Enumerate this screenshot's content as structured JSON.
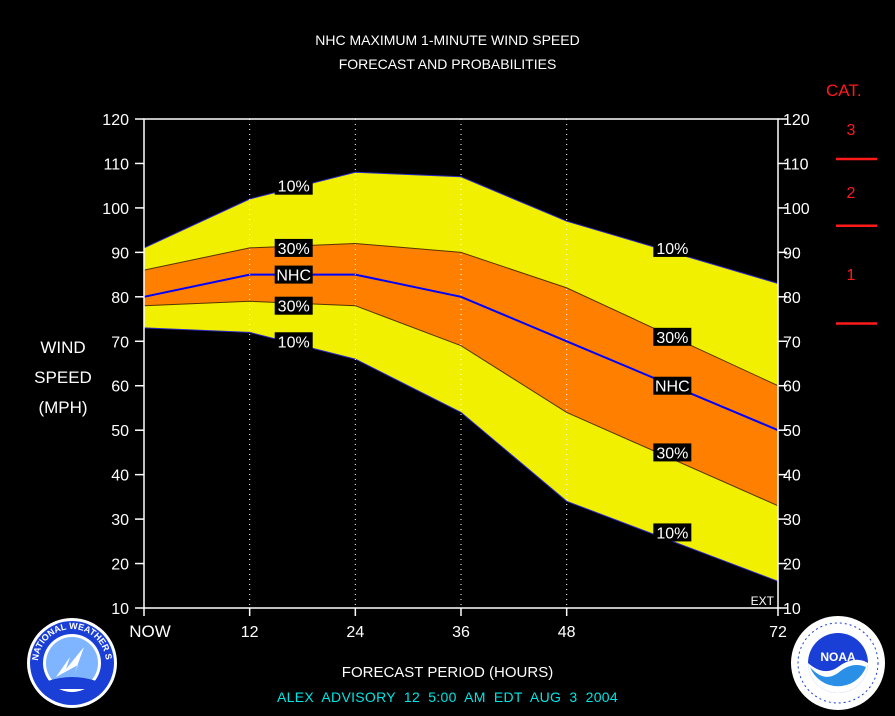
{
  "title": {
    "line1": "NHC MAXIMUM 1-MINUTE WIND SPEED",
    "line2": "FORECAST AND PROBABILITIES"
  },
  "y_axis_label": [
    "WIND",
    "SPEED",
    "(MPH)"
  ],
  "x_axis_label": "FORECAST PERIOD (HOURS)",
  "advisory": "ALEX   ADVISORY  12 5:00  AM  EDT  AUG  3  2004",
  "ext_label": "EXT",
  "category_scale": {
    "title": "CAT.",
    "categories": [
      {
        "label": "3",
        "min_mph": 111
      },
      {
        "label": "2",
        "min_mph": 96
      },
      {
        "label": "1",
        "min_mph": 74
      }
    ]
  },
  "logos": {
    "left": "noaa-national-weather-service-seal",
    "right": "noaa-department-of-commerce-seal",
    "left_text": "NATIONAL WEATHER SERVICE",
    "right_text": "NOAA"
  },
  "chart_data": {
    "type": "area",
    "xlabel": "FORECAST PERIOD (HOURS)",
    "ylabel": "WIND SPEED (MPH)",
    "x_ticks": [
      {
        "value": 0,
        "label": "NOW"
      },
      {
        "value": 12,
        "label": "12"
      },
      {
        "value": 24,
        "label": "24"
      },
      {
        "value": 36,
        "label": "36"
      },
      {
        "value": 48,
        "label": "48"
      },
      {
        "value": 72,
        "label": "72"
      }
    ],
    "xlim": [
      0,
      72
    ],
    "ylim": [
      10,
      120
    ],
    "y_ticks": [
      10,
      20,
      30,
      40,
      50,
      60,
      70,
      80,
      90,
      100,
      110,
      120
    ],
    "x": [
      0,
      12,
      24,
      36,
      48,
      72
    ],
    "series": [
      {
        "name": "10%",
        "role": "upper",
        "values": [
          91,
          102,
          108,
          107,
          97,
          83
        ]
      },
      {
        "name": "30%",
        "role": "upper",
        "values": [
          86,
          91,
          92,
          90,
          82,
          60
        ]
      },
      {
        "name": "NHC",
        "role": "forecast",
        "values": [
          80,
          85,
          85,
          80,
          70,
          50
        ]
      },
      {
        "name": "30%",
        "role": "lower",
        "values": [
          78,
          79,
          78,
          69,
          54,
          33
        ]
      },
      {
        "name": "10%",
        "role": "lower",
        "values": [
          73,
          72,
          66,
          54,
          34,
          16
        ]
      }
    ],
    "band_labels": [
      {
        "text": "10%",
        "x": 17,
        "y": 105
      },
      {
        "text": "30%",
        "x": 17,
        "y": 91
      },
      {
        "text": "NHC",
        "x": 17,
        "y": 85
      },
      {
        "text": "30%",
        "x": 17,
        "y": 78
      },
      {
        "text": "10%",
        "x": 17,
        "y": 70
      },
      {
        "text": "10%",
        "x": 60,
        "y": 91
      },
      {
        "text": "30%",
        "x": 60,
        "y": 71
      },
      {
        "text": "NHC",
        "x": 60,
        "y": 60
      },
      {
        "text": "30%",
        "x": 60,
        "y": 45
      },
      {
        "text": "10%",
        "x": 60,
        "y": 27
      }
    ],
    "colors": {
      "outer_band": "#f0f000",
      "inner_band": "#ff8000",
      "forecast_line": "#0000ff",
      "frame": "#ffffff",
      "category_marks": "#ff1a1a",
      "advisory_text": "#00e5e5"
    }
  }
}
